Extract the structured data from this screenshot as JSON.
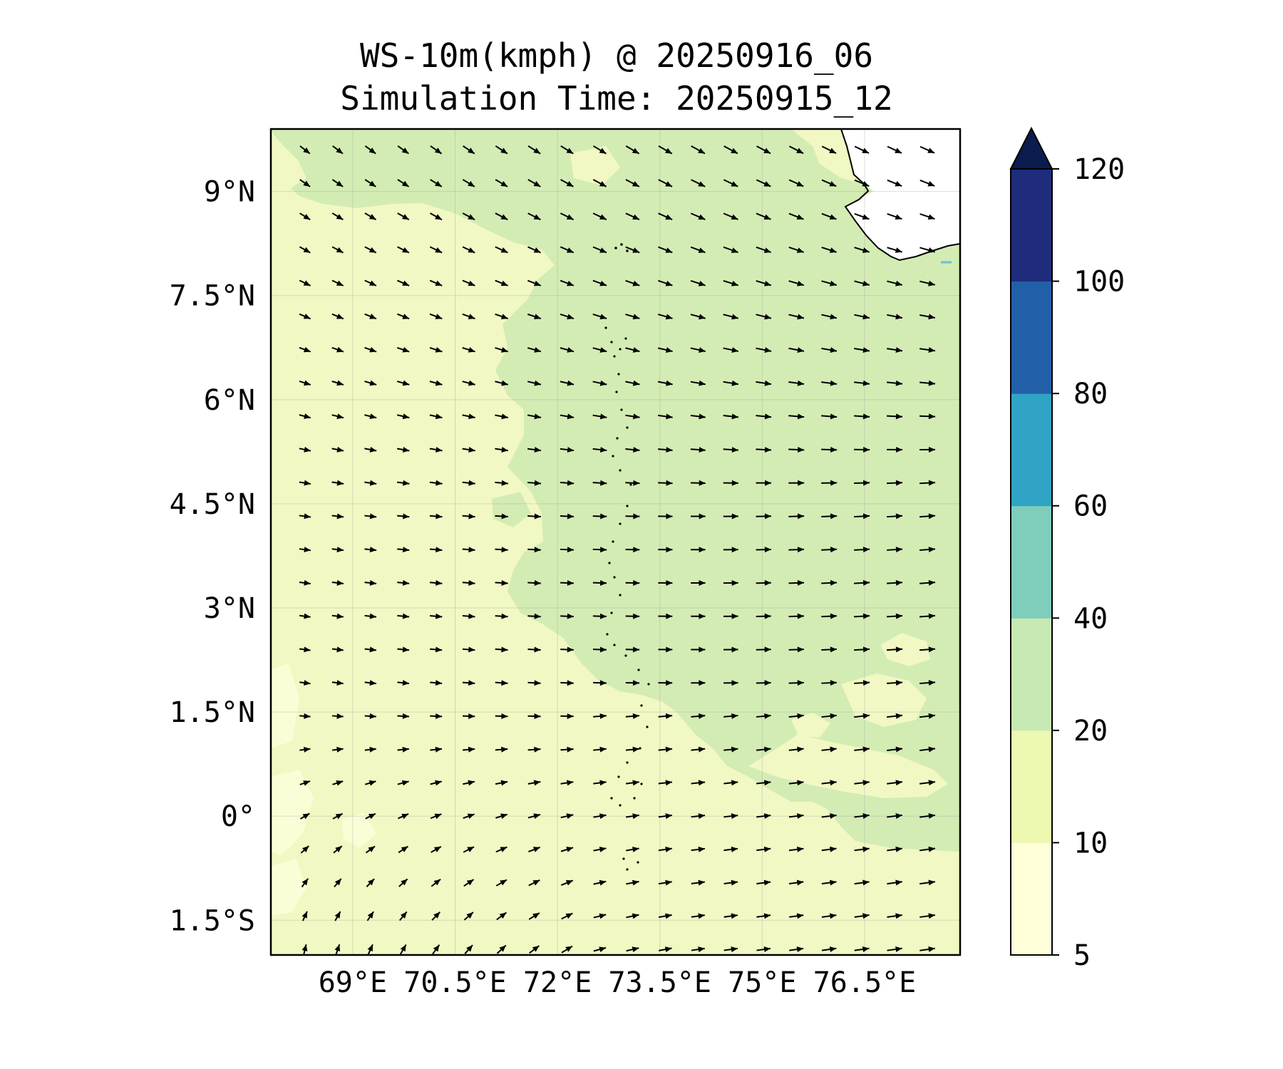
{
  "title": "WS-10m(kmph) @ 20250916_06",
  "subtitle": "Simulation Time: 20250915_12",
  "map": {
    "lon_range": [
      67.8,
      77.9
    ],
    "lat_range": [
      -2.0,
      9.9
    ],
    "lon_ticks": [
      {
        "value": 69,
        "label": "69°E"
      },
      {
        "value": 70.5,
        "label": "70.5°E"
      },
      {
        "value": 72,
        "label": "72°E"
      },
      {
        "value": 73.5,
        "label": "73.5°E"
      },
      {
        "value": 75,
        "label": "75°E"
      },
      {
        "value": 76.5,
        "label": "76.5°E"
      }
    ],
    "lat_ticks": [
      {
        "value": 9,
        "label": "9°N"
      },
      {
        "value": 7.5,
        "label": "7.5°N"
      },
      {
        "value": 6,
        "label": "6°N"
      },
      {
        "value": 4.5,
        "label": "4.5°N"
      },
      {
        "value": 3,
        "label": "3°N"
      },
      {
        "value": 1.5,
        "label": "1.5°N"
      },
      {
        "value": 0,
        "label": "0°"
      },
      {
        "value": -1.5,
        "label": "1.5°S"
      }
    ],
    "gridlines": true,
    "field": "10 m wind speed (kmph), filled contours, with wind-direction arrows",
    "region_speed_bands": [
      {
        "area": "west and south of domain",
        "band": "10-20"
      },
      {
        "area": "north and east of domain",
        "band": "20-40"
      },
      {
        "area": "southwest edge patches",
        "band": "5-10"
      }
    ],
    "wind_regime": [
      {
        "area": "north",
        "direction": "northwest to southeast"
      },
      {
        "area": "south-west",
        "direction": "south to north, veering to westerly"
      },
      {
        "area": "central and east",
        "direction": "westerly (west to east)"
      }
    ]
  },
  "colorbar": {
    "levels": [
      5,
      10,
      20,
      40,
      60,
      80,
      100,
      120
    ],
    "labels": [
      "5",
      "10",
      "20",
      "40",
      "60",
      "80",
      "100",
      "120"
    ],
    "colors": [
      "#ffffd9",
      "#edf8b1",
      "#c7e9b4",
      "#7fcdbb",
      "#2fa4c4",
      "#2160a8",
      "#1e2c7b"
    ],
    "extend_color": "#0b1d4f",
    "extend": "max"
  },
  "colors": {
    "band_5_10": "#fbfdd6",
    "band_10_20": "#f1f8c3",
    "band_20_40": "#d3ecb4",
    "land": "#ffffff",
    "arrows": "#000000"
  }
}
